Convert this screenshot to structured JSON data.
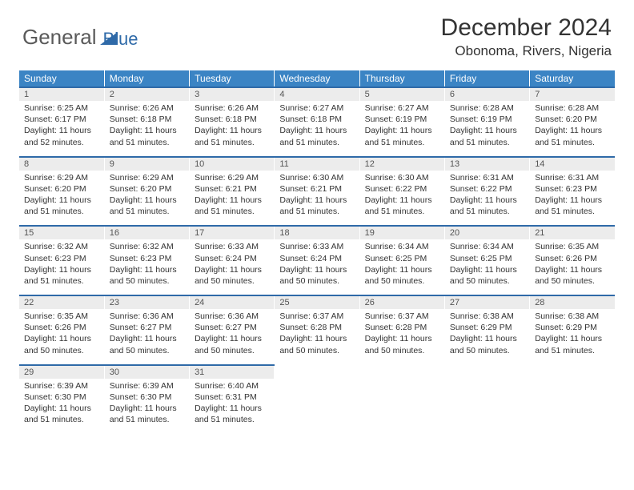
{
  "brand": {
    "part1": "General",
    "part2": "Blue"
  },
  "title": "December 2024",
  "location": "Obonoma, Rivers, Nigeria",
  "colors": {
    "header_bg": "#3b84c4",
    "rule": "#2f6aa8",
    "num_bg": "#ececec",
    "page_bg": "#ffffff",
    "text": "#333333",
    "logo_gray": "#5a5a5a",
    "logo_blue": "#2f6aa8"
  },
  "day_headers": [
    "Sunday",
    "Monday",
    "Tuesday",
    "Wednesday",
    "Thursday",
    "Friday",
    "Saturday"
  ],
  "weeks": [
    [
      {
        "n": "1",
        "sr": "6:25 AM",
        "ss": "6:17 PM",
        "dl": "11 hours and 52 minutes."
      },
      {
        "n": "2",
        "sr": "6:26 AM",
        "ss": "6:18 PM",
        "dl": "11 hours and 51 minutes."
      },
      {
        "n": "3",
        "sr": "6:26 AM",
        "ss": "6:18 PM",
        "dl": "11 hours and 51 minutes."
      },
      {
        "n": "4",
        "sr": "6:27 AM",
        "ss": "6:18 PM",
        "dl": "11 hours and 51 minutes."
      },
      {
        "n": "5",
        "sr": "6:27 AM",
        "ss": "6:19 PM",
        "dl": "11 hours and 51 minutes."
      },
      {
        "n": "6",
        "sr": "6:28 AM",
        "ss": "6:19 PM",
        "dl": "11 hours and 51 minutes."
      },
      {
        "n": "7",
        "sr": "6:28 AM",
        "ss": "6:20 PM",
        "dl": "11 hours and 51 minutes."
      }
    ],
    [
      {
        "n": "8",
        "sr": "6:29 AM",
        "ss": "6:20 PM",
        "dl": "11 hours and 51 minutes."
      },
      {
        "n": "9",
        "sr": "6:29 AM",
        "ss": "6:20 PM",
        "dl": "11 hours and 51 minutes."
      },
      {
        "n": "10",
        "sr": "6:29 AM",
        "ss": "6:21 PM",
        "dl": "11 hours and 51 minutes."
      },
      {
        "n": "11",
        "sr": "6:30 AM",
        "ss": "6:21 PM",
        "dl": "11 hours and 51 minutes."
      },
      {
        "n": "12",
        "sr": "6:30 AM",
        "ss": "6:22 PM",
        "dl": "11 hours and 51 minutes."
      },
      {
        "n": "13",
        "sr": "6:31 AM",
        "ss": "6:22 PM",
        "dl": "11 hours and 51 minutes."
      },
      {
        "n": "14",
        "sr": "6:31 AM",
        "ss": "6:23 PM",
        "dl": "11 hours and 51 minutes."
      }
    ],
    [
      {
        "n": "15",
        "sr": "6:32 AM",
        "ss": "6:23 PM",
        "dl": "11 hours and 51 minutes."
      },
      {
        "n": "16",
        "sr": "6:32 AM",
        "ss": "6:23 PM",
        "dl": "11 hours and 50 minutes."
      },
      {
        "n": "17",
        "sr": "6:33 AM",
        "ss": "6:24 PM",
        "dl": "11 hours and 50 minutes."
      },
      {
        "n": "18",
        "sr": "6:33 AM",
        "ss": "6:24 PM",
        "dl": "11 hours and 50 minutes."
      },
      {
        "n": "19",
        "sr": "6:34 AM",
        "ss": "6:25 PM",
        "dl": "11 hours and 50 minutes."
      },
      {
        "n": "20",
        "sr": "6:34 AM",
        "ss": "6:25 PM",
        "dl": "11 hours and 50 minutes."
      },
      {
        "n": "21",
        "sr": "6:35 AM",
        "ss": "6:26 PM",
        "dl": "11 hours and 50 minutes."
      }
    ],
    [
      {
        "n": "22",
        "sr": "6:35 AM",
        "ss": "6:26 PM",
        "dl": "11 hours and 50 minutes."
      },
      {
        "n": "23",
        "sr": "6:36 AM",
        "ss": "6:27 PM",
        "dl": "11 hours and 50 minutes."
      },
      {
        "n": "24",
        "sr": "6:36 AM",
        "ss": "6:27 PM",
        "dl": "11 hours and 50 minutes."
      },
      {
        "n": "25",
        "sr": "6:37 AM",
        "ss": "6:28 PM",
        "dl": "11 hours and 50 minutes."
      },
      {
        "n": "26",
        "sr": "6:37 AM",
        "ss": "6:28 PM",
        "dl": "11 hours and 50 minutes."
      },
      {
        "n": "27",
        "sr": "6:38 AM",
        "ss": "6:29 PM",
        "dl": "11 hours and 50 minutes."
      },
      {
        "n": "28",
        "sr": "6:38 AM",
        "ss": "6:29 PM",
        "dl": "11 hours and 51 minutes."
      }
    ],
    [
      {
        "n": "29",
        "sr": "6:39 AM",
        "ss": "6:30 PM",
        "dl": "11 hours and 51 minutes."
      },
      {
        "n": "30",
        "sr": "6:39 AM",
        "ss": "6:30 PM",
        "dl": "11 hours and 51 minutes."
      },
      {
        "n": "31",
        "sr": "6:40 AM",
        "ss": "6:31 PM",
        "dl": "11 hours and 51 minutes."
      },
      null,
      null,
      null,
      null
    ]
  ],
  "labels": {
    "sunrise": "Sunrise:",
    "sunset": "Sunset:",
    "daylight": "Daylight:"
  }
}
